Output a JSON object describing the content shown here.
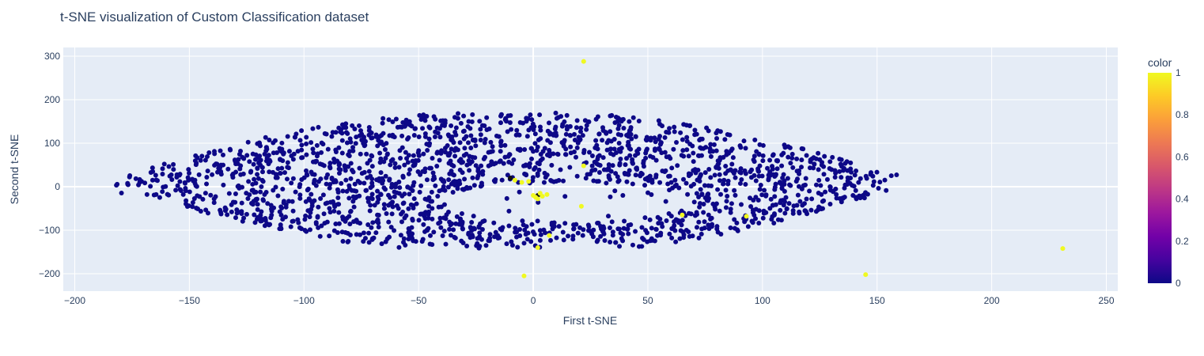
{
  "chart_data": {
    "type": "scatter",
    "title": "t-SNE visualization of Custom Classification dataset",
    "xlabel": "First t-SNE",
    "ylabel": "Second t-SNE",
    "xlim": [
      -205,
      255
    ],
    "ylim": [
      -240,
      320
    ],
    "x_ticks": [
      -200,
      -150,
      -100,
      -50,
      0,
      50,
      100,
      150,
      200,
      250
    ],
    "y_ticks": [
      -200,
      -100,
      0,
      100,
      200,
      300
    ],
    "grid": true,
    "colorbar": {
      "title": "color",
      "range": [
        0,
        1
      ],
      "ticks": [
        0,
        0.2,
        0.4,
        0.6,
        0.8,
        1
      ],
      "tick_labels": [
        "0",
        "0.2",
        "0.4",
        "0.6",
        "0.8",
        "1"
      ],
      "colorscale": [
        "#0d0887",
        "#46039f",
        "#7201a8",
        "#9c179e",
        "#bd3786",
        "#d8576b",
        "#ed7953",
        "#fb9f3a",
        "#fdca26",
        "#f0f921"
      ]
    },
    "point_size": 3,
    "dense_cluster": {
      "description_count": 2500,
      "x_range": [
        -182,
        160
      ],
      "y_range": [
        -145,
        172
      ],
      "color_value": 0
    },
    "points_class_1": [
      {
        "x": 22,
        "y": 288
      },
      {
        "x": 231,
        "y": -142
      },
      {
        "x": 145,
        "y": -202
      },
      {
        "x": -4,
        "y": -205
      },
      {
        "x": 2,
        "y": -140
      },
      {
        "x": 21,
        "y": -45
      },
      {
        "x": 22,
        "y": 48
      },
      {
        "x": -8,
        "y": 15
      },
      {
        "x": -5,
        "y": 10
      },
      {
        "x": -2,
        "y": 12
      },
      {
        "x": 0,
        "y": -20
      },
      {
        "x": 2,
        "y": -28
      },
      {
        "x": 4,
        "y": -22
      },
      {
        "x": 6,
        "y": -18
      },
      {
        "x": 3,
        "y": -15
      },
      {
        "x": 7,
        "y": -112
      },
      {
        "x": 65,
        "y": -65
      },
      {
        "x": 93,
        "y": -68
      },
      {
        "x": 1,
        "y": -24
      }
    ],
    "points_class_0_highlight": [
      {
        "x": 2,
        "y": -20
      },
      {
        "x": -10,
        "y": 20
      }
    ]
  }
}
